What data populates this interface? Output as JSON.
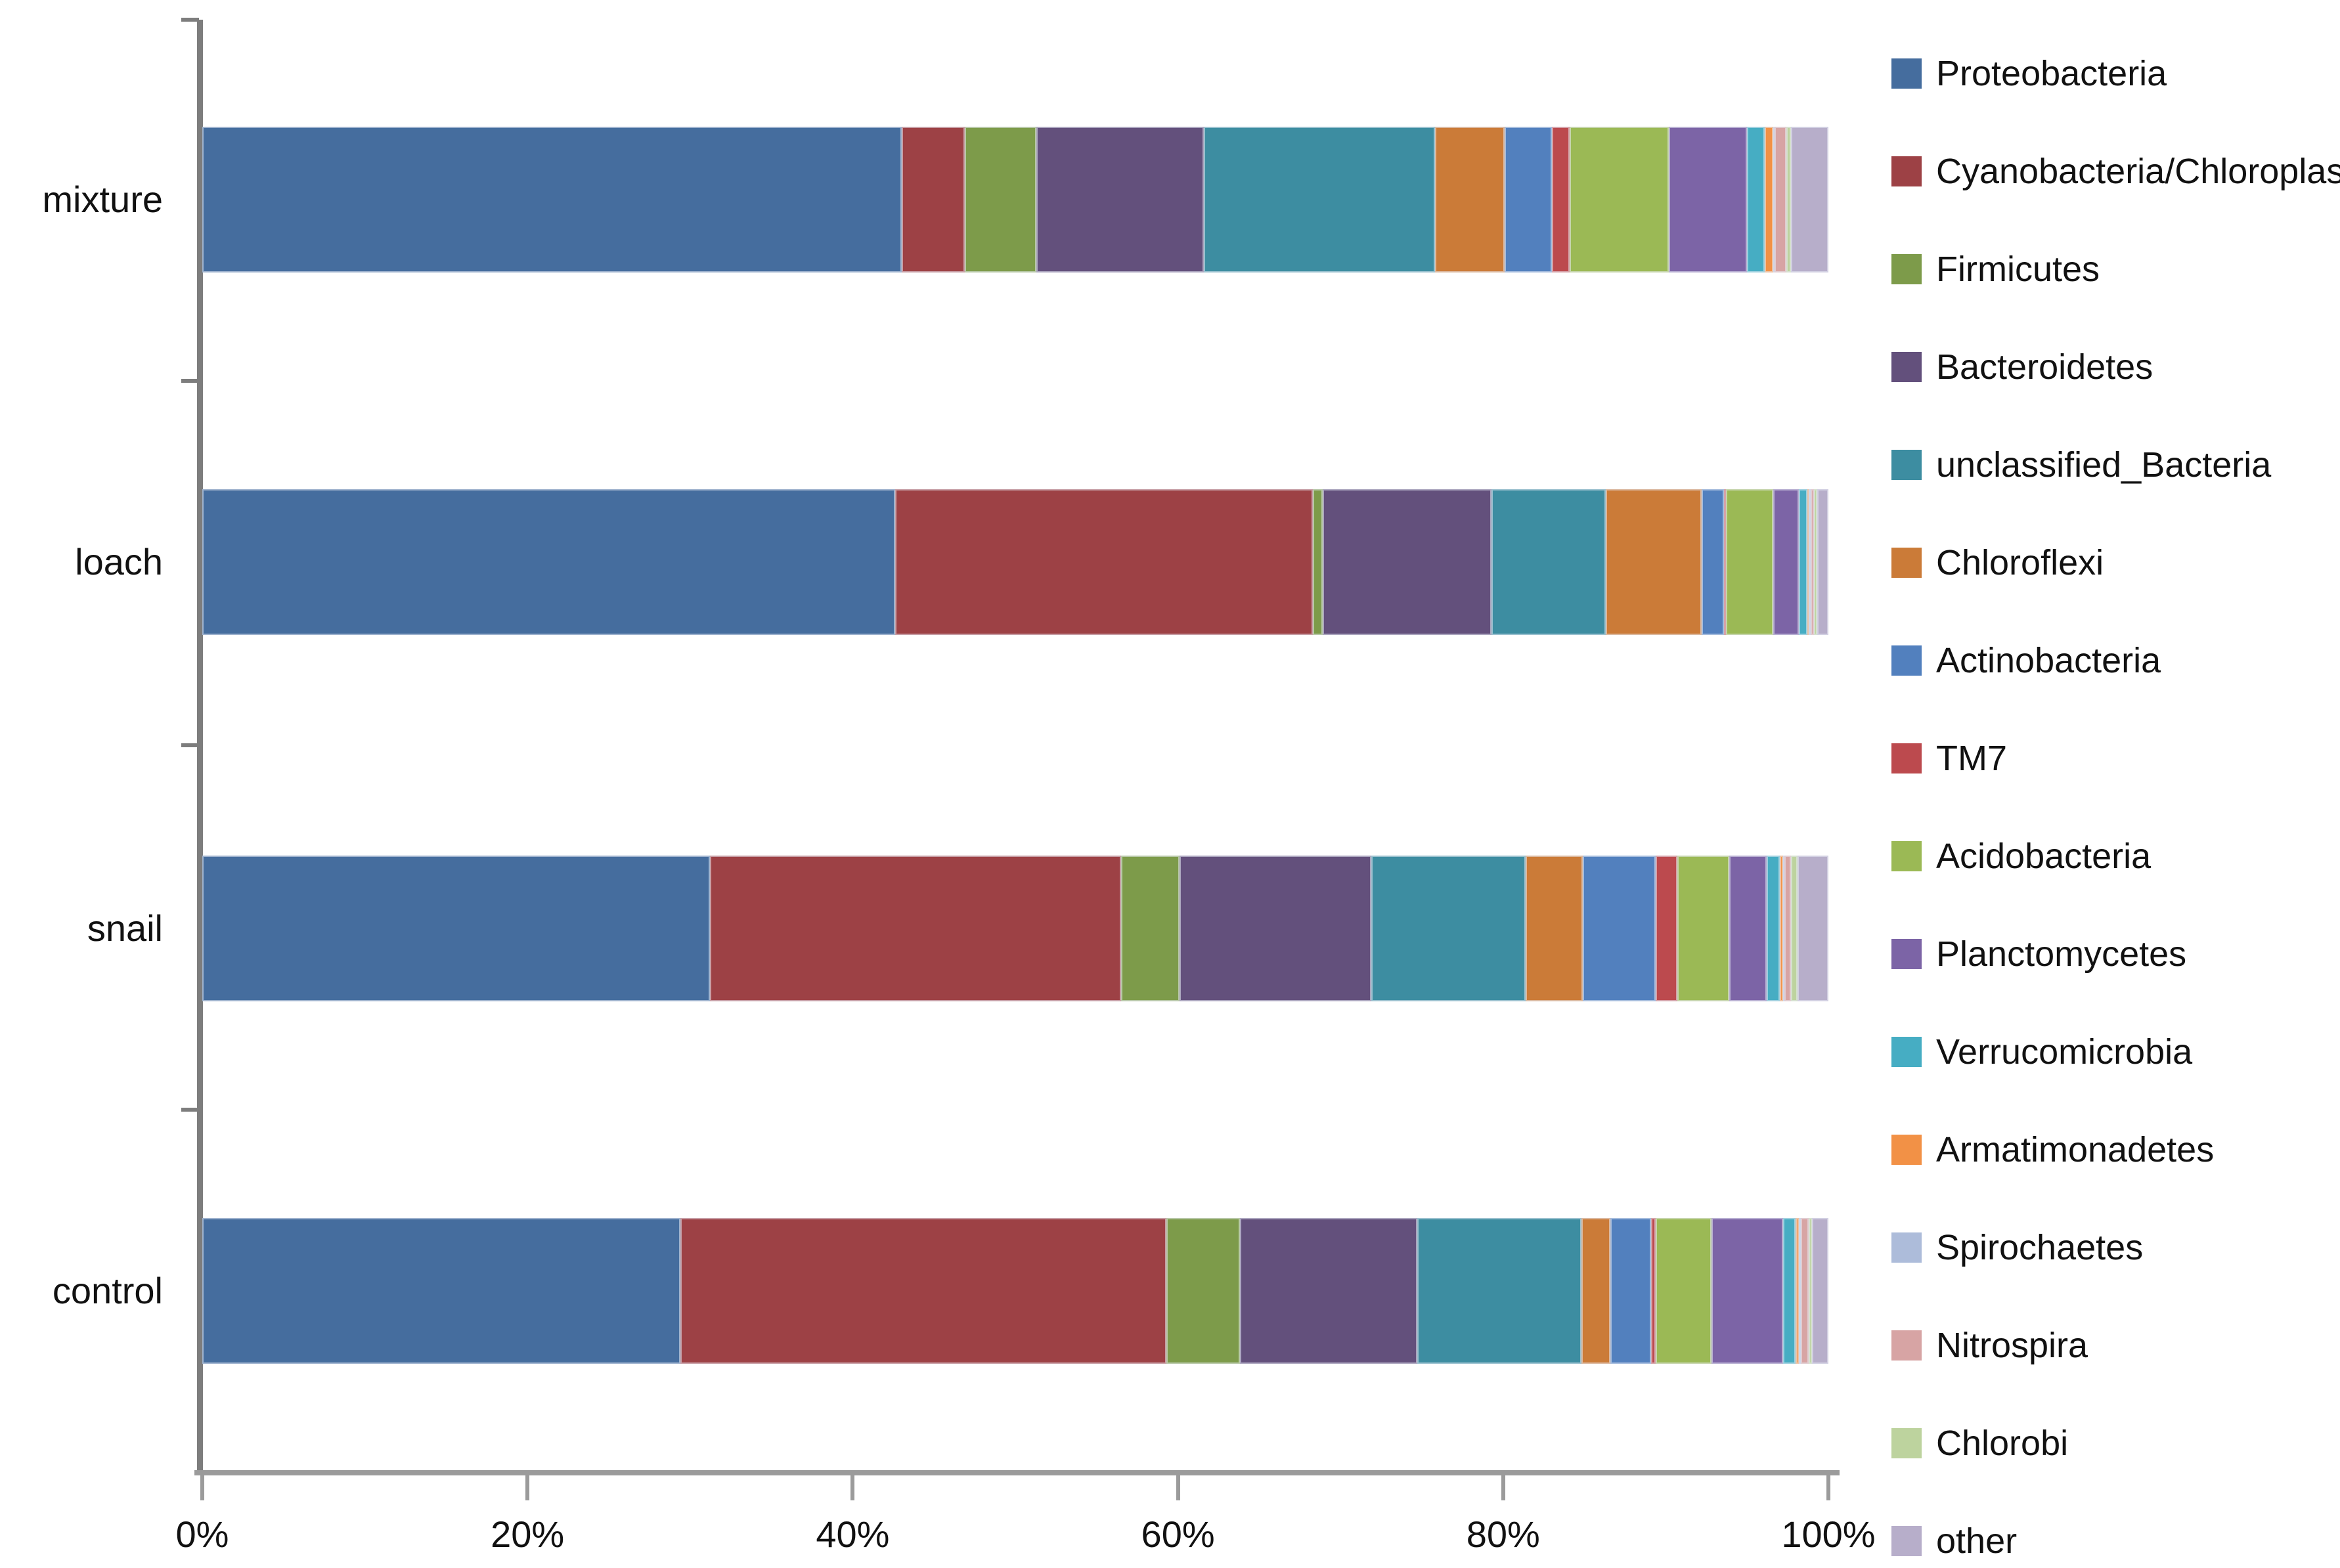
{
  "chart_data": {
    "type": "bar",
    "orientation": "horizontal",
    "stacked": true,
    "unit": "percent",
    "title": "",
    "xlabel": "",
    "ylabel": "",
    "grid": false,
    "legend_position": "right",
    "xlim": [
      0,
      100
    ],
    "x_ticks": [
      "0%",
      "20%",
      "40%",
      "60%",
      "80%",
      "100%"
    ],
    "x_tick_values": [
      0,
      20,
      40,
      60,
      80,
      100
    ],
    "categories": [
      "mixture",
      "loach",
      "snail",
      "control"
    ],
    "series": [
      {
        "name": "Proteobacteria",
        "color": "#456D9E",
        "values": [
          43.0,
          42.6,
          31.2,
          29.4
        ]
      },
      {
        "name": "Cyanobacteria/Chloroplast",
        "color": "#9D4145",
        "values": [
          3.9,
          25.7,
          25.3,
          29.9
        ]
      },
      {
        "name": "Firmicutes",
        "color": "#7D9B4A",
        "values": [
          4.4,
          0.6,
          3.6,
          4.5
        ]
      },
      {
        "name": "Bacteroidetes",
        "color": "#63507C",
        "values": [
          10.3,
          10.4,
          11.8,
          10.9
        ]
      },
      {
        "name": "unclassified_Bacteria",
        "color": "#3D8DA1",
        "values": [
          14.2,
          7.0,
          9.5,
          10.1
        ]
      },
      {
        "name": "Chloroflexi",
        "color": "#CB7B38",
        "values": [
          4.3,
          5.9,
          3.5,
          1.8
        ]
      },
      {
        "name": "Actinobacteria",
        "color": "#5280BE",
        "values": [
          2.9,
          1.4,
          4.5,
          2.5
        ]
      },
      {
        "name": "TM7",
        "color": "#BC4A4E",
        "values": [
          1.1,
          0.1,
          1.3,
          0.3
        ]
      },
      {
        "name": "Acidobacteria",
        "color": "#9BB955",
        "values": [
          6.1,
          2.9,
          3.2,
          3.4
        ]
      },
      {
        "name": "Planctomycetes",
        "color": "#7C64A6",
        "values": [
          4.8,
          1.6,
          2.3,
          4.4
        ]
      },
      {
        "name": "Verrucomicrobia",
        "color": "#46ADC3",
        "values": [
          1.1,
          0.5,
          0.8,
          0.8
        ]
      },
      {
        "name": "Armatimonadetes",
        "color": "#F29146",
        "values": [
          0.5,
          0.1,
          0.2,
          0.2
        ]
      },
      {
        "name": "Spirochaetes",
        "color": "#ADBCDA",
        "values": [
          0.1,
          0.1,
          0.1,
          0.1
        ]
      },
      {
        "name": "Nitrospira",
        "color": "#D7A4A4",
        "values": [
          0.7,
          0.2,
          0.4,
          0.5
        ]
      },
      {
        "name": "Chlorobi",
        "color": "#BDD39E",
        "values": [
          0.3,
          0.2,
          0.4,
          0.2
        ]
      },
      {
        "name": "other",
        "color": "#B7AECA",
        "values": [
          2.3,
          0.7,
          1.9,
          1.0
        ]
      }
    ],
    "axis_colors": {
      "x_axis": "#9b9b9b",
      "y_axis": "#7d7d7d",
      "tick": "#9b9b9b",
      "label_text": "#111111"
    }
  }
}
